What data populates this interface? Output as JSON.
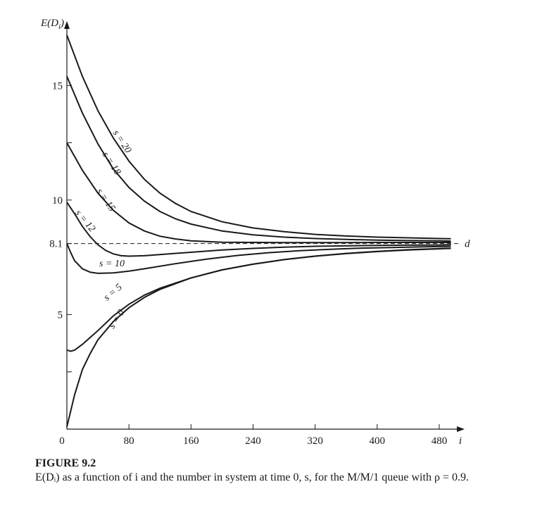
{
  "chart_data": {
    "type": "line",
    "ylabel": "E(D_i)",
    "xlabel": "i",
    "xlim": [
      0,
      500
    ],
    "ylim": [
      0,
      17.5
    ],
    "x_ticks": [
      0,
      80,
      160,
      240,
      320,
      400,
      480
    ],
    "x_tick_labels": [
      "0",
      "80",
      "160",
      "240",
      "320",
      "400",
      "480"
    ],
    "y_ticks": [
      5,
      8.1,
      10,
      15
    ],
    "y_tick_labels": [
      "5",
      "8.1",
      "10",
      "15"
    ],
    "y_minor_ticks": [
      2.5,
      12.5
    ],
    "reference_line": {
      "y": 8.1,
      "label": "d",
      "style": "dashed"
    },
    "grid": false,
    "series": [
      {
        "name": "s = 20",
        "label_angle": 57,
        "points": [
          [
            0,
            17.2
          ],
          [
            20,
            15.4
          ],
          [
            40,
            13.9
          ],
          [
            60,
            12.7
          ],
          [
            80,
            11.7
          ],
          [
            100,
            10.9
          ],
          [
            120,
            10.3
          ],
          [
            140,
            9.85
          ],
          [
            160,
            9.5
          ],
          [
            200,
            9.05
          ],
          [
            240,
            8.78
          ],
          [
            280,
            8.62
          ],
          [
            320,
            8.5
          ],
          [
            360,
            8.43
          ],
          [
            400,
            8.38
          ],
          [
            440,
            8.35
          ],
          [
            480,
            8.32
          ],
          [
            495,
            8.31
          ]
        ]
      },
      {
        "name": "s = 18",
        "label_angle": 57,
        "points": [
          [
            0,
            15.4
          ],
          [
            20,
            13.8
          ],
          [
            40,
            12.45
          ],
          [
            60,
            11.35
          ],
          [
            80,
            10.55
          ],
          [
            100,
            9.95
          ],
          [
            120,
            9.5
          ],
          [
            140,
            9.18
          ],
          [
            160,
            8.95
          ],
          [
            200,
            8.65
          ],
          [
            240,
            8.48
          ],
          [
            280,
            8.38
          ],
          [
            320,
            8.32
          ],
          [
            360,
            8.28
          ],
          [
            400,
            8.25
          ],
          [
            440,
            8.23
          ],
          [
            480,
            8.22
          ],
          [
            495,
            8.21
          ]
        ]
      },
      {
        "name": "s = 15",
        "label_angle": 55,
        "points": [
          [
            0,
            12.5
          ],
          [
            20,
            11.3
          ],
          [
            40,
            10.3
          ],
          [
            60,
            9.55
          ],
          [
            80,
            9.0
          ],
          [
            100,
            8.65
          ],
          [
            120,
            8.42
          ],
          [
            140,
            8.3
          ],
          [
            160,
            8.22
          ],
          [
            200,
            8.16
          ],
          [
            240,
            8.15
          ],
          [
            280,
            8.14
          ],
          [
            320,
            8.14
          ],
          [
            360,
            8.14
          ],
          [
            400,
            8.15
          ],
          [
            440,
            8.15
          ],
          [
            480,
            8.15
          ],
          [
            495,
            8.15
          ]
        ]
      },
      {
        "name": "s = 12",
        "label_angle": 50,
        "points": [
          [
            0,
            9.9
          ],
          [
            10,
            9.4
          ],
          [
            20,
            8.85
          ],
          [
            30,
            8.4
          ],
          [
            40,
            8.05
          ],
          [
            50,
            7.8
          ],
          [
            60,
            7.65
          ],
          [
            70,
            7.57
          ],
          [
            80,
            7.55
          ],
          [
            100,
            7.57
          ],
          [
            120,
            7.62
          ],
          [
            160,
            7.72
          ],
          [
            200,
            7.82
          ],
          [
            240,
            7.89
          ],
          [
            280,
            7.94
          ],
          [
            320,
            7.98
          ],
          [
            360,
            8.0
          ],
          [
            400,
            8.02
          ],
          [
            440,
            8.03
          ],
          [
            480,
            8.04
          ],
          [
            495,
            8.05
          ]
        ]
      },
      {
        "name": "s = 10",
        "label_angle": 0,
        "points": [
          [
            0,
            8.1
          ],
          [
            5,
            7.7
          ],
          [
            10,
            7.35
          ],
          [
            20,
            7.0
          ],
          [
            30,
            6.85
          ],
          [
            40,
            6.8
          ],
          [
            60,
            6.82
          ],
          [
            80,
            6.9
          ],
          [
            100,
            7.0
          ],
          [
            140,
            7.22
          ],
          [
            180,
            7.42
          ],
          [
            220,
            7.58
          ],
          [
            260,
            7.7
          ],
          [
            300,
            7.79
          ],
          [
            340,
            7.85
          ],
          [
            380,
            7.9
          ],
          [
            420,
            7.93
          ],
          [
            460,
            7.96
          ],
          [
            495,
            7.98
          ]
        ]
      },
      {
        "name": "s = 5",
        "label_angle": -40,
        "points": [
          [
            0,
            3.45
          ],
          [
            5,
            3.4
          ],
          [
            10,
            3.45
          ],
          [
            20,
            3.7
          ],
          [
            40,
            4.3
          ],
          [
            60,
            4.95
          ],
          [
            80,
            5.45
          ],
          [
            100,
            5.85
          ],
          [
            120,
            6.15
          ],
          [
            160,
            6.6
          ],
          [
            200,
            6.95
          ],
          [
            240,
            7.2
          ],
          [
            280,
            7.4
          ],
          [
            320,
            7.55
          ],
          [
            360,
            7.67
          ],
          [
            400,
            7.76
          ],
          [
            440,
            7.83
          ],
          [
            480,
            7.88
          ],
          [
            495,
            7.9
          ]
        ]
      },
      {
        "name": "s = 0",
        "label_angle": -57,
        "points": [
          [
            0,
            0.1
          ],
          [
            5,
            0.8
          ],
          [
            10,
            1.5
          ],
          [
            20,
            2.6
          ],
          [
            30,
            3.3
          ],
          [
            40,
            3.9
          ],
          [
            60,
            4.7
          ],
          [
            80,
            5.3
          ],
          [
            100,
            5.75
          ],
          [
            120,
            6.1
          ],
          [
            160,
            6.6
          ],
          [
            200,
            6.95
          ],
          [
            240,
            7.2
          ],
          [
            280,
            7.4
          ],
          [
            320,
            7.55
          ],
          [
            360,
            7.66
          ],
          [
            400,
            7.75
          ],
          [
            440,
            7.82
          ],
          [
            480,
            7.87
          ],
          [
            495,
            7.89
          ]
        ]
      }
    ]
  },
  "caption": {
    "title": "FIGURE 9.2",
    "text": "E(Dᵢ) as a function of i and the number in system at time 0, s, for the M/M/1 queue with ρ = 0.9."
  }
}
